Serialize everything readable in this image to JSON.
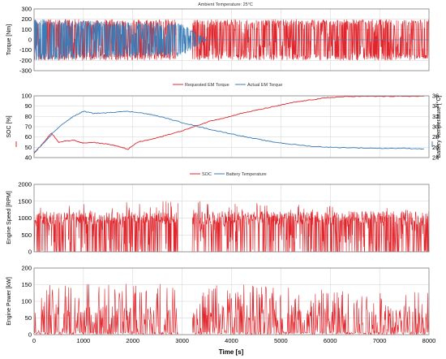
{
  "colors": {
    "red": "#e0262c",
    "blue": "#3a7cb8"
  },
  "chart_data": [
    {
      "type": "line",
      "title": "Ambient Temperature: 25°C",
      "xlabel": "",
      "ylabel": "Torque [Nm]",
      "xlim": [
        0,
        8000
      ],
      "ylim": [
        -300,
        300
      ],
      "yticks": [
        -300,
        -200,
        -100,
        0,
        100,
        200,
        300
      ],
      "grid": true,
      "legend": [
        "Requested EM Torque",
        "Actual EM Torque"
      ],
      "series": [
        {
          "name": "Requested EM Torque",
          "color": "red",
          "pattern": "dense_oscillation",
          "envelope": {
            "x": [
              0,
              1800,
              2900,
              3200,
              8000
            ],
            "min": [
              -200,
              -200,
              -200,
              -200,
              -200
            ],
            "max": [
              200,
              200,
              200,
              200,
              200
            ]
          },
          "gaps": [
            [
              2880,
              3200
            ]
          ]
        },
        {
          "name": "Actual EM Torque",
          "color": "blue",
          "pattern": "dense_oscillation",
          "envelope": {
            "x": [
              0,
              3000,
              3500,
              8000
            ],
            "min": [
              -200,
              -160,
              0,
              0
            ],
            "max": [
              200,
              160,
              0,
              0
            ]
          }
        }
      ]
    },
    {
      "type": "line",
      "title": "",
      "xlabel": "",
      "ylabel": "SOC [%]",
      "ylabel2": "Battery Temperature [°C]",
      "xlim": [
        0,
        8000
      ],
      "ylim": [
        40,
        100
      ],
      "ylim2": [
        24,
        36
      ],
      "yticks": [
        40,
        50,
        60,
        70,
        80,
        90,
        100
      ],
      "yticks2": [
        24,
        26,
        28,
        30,
        32,
        34,
        36
      ],
      "grid": true,
      "legend": [
        "SOC",
        "Battery Temperature"
      ],
      "series": [
        {
          "name": "SOC",
          "color": "red",
          "x": [
            0,
            200,
            350,
            500,
            800,
            1000,
            1200,
            1500,
            1700,
            1900,
            2100,
            2400,
            2700,
            3000,
            3300,
            3600,
            3900,
            4200,
            4500,
            4800,
            5000,
            5300,
            5600,
            5900,
            6200,
            6500,
            7000,
            7500,
            7900
          ],
          "y": [
            44,
            55,
            64,
            55,
            57,
            54,
            55,
            53,
            51,
            48,
            55,
            58,
            62,
            66,
            71,
            76,
            79,
            83,
            86,
            89,
            91,
            94,
            96,
            98,
            99,
            99.5,
            99.5,
            99.5,
            99.5
          ]
        },
        {
          "name": "Battery Temperature",
          "color": "blue",
          "axis": "right",
          "x": [
            0,
            200,
            400,
            600,
            800,
            1000,
            1200,
            1500,
            1800,
            2100,
            2400,
            2700,
            3000,
            3300,
            3600,
            4000,
            4400,
            4800,
            5200,
            5600,
            6000,
            6500,
            7000,
            7500,
            7900
          ],
          "y": [
            25.0,
            26.8,
            29.0,
            30.7,
            32.0,
            33.0,
            32.6,
            32.7,
            33.0,
            32.8,
            32.3,
            31.6,
            30.8,
            30.1,
            29.4,
            28.6,
            27.8,
            27.1,
            26.6,
            26.2,
            26.0,
            25.9,
            25.8,
            25.8,
            25.7
          ]
        }
      ]
    },
    {
      "type": "line",
      "title": "",
      "xlabel": "",
      "ylabel": "Engine Speed [RPM]",
      "xlim": [
        0,
        8000
      ],
      "ylim": [
        0,
        2000
      ],
      "yticks": [
        0,
        500,
        1000,
        1500,
        2000
      ],
      "grid": true,
      "series": [
        {
          "name": "",
          "color": "red",
          "pattern": "dense_oscillation",
          "envelope": {
            "x": [
              0,
              2200,
              8000
            ],
            "min": [
              0,
              0,
              0
            ],
            "max": [
              1300,
              1580,
              1250
            ]
          },
          "base": [
            800,
            1200
          ],
          "gaps": [
            [
              2920,
              3200
            ]
          ]
        }
      ]
    },
    {
      "type": "line",
      "title": "",
      "xlabel": "Time [s]",
      "ylabel": "Engine Power [kW]",
      "xlim": [
        0,
        8000
      ],
      "ylim": [
        0,
        200
      ],
      "yticks": [
        0,
        50,
        100,
        150,
        200
      ],
      "xticks": [
        0,
        1000,
        2000,
        3000,
        4000,
        5000,
        6000,
        7000,
        8000
      ],
      "grid": true,
      "series": [
        {
          "name": "",
          "color": "red",
          "pattern": "spikes",
          "envelope": {
            "x": [
              0,
              2900,
              4300,
              8000
            ],
            "min": [
              0,
              0,
              0,
              0
            ],
            "max": [
              150,
              155,
              155,
              130
            ]
          },
          "gaps": [
            [
              2920,
              3200
            ]
          ]
        }
      ]
    }
  ]
}
